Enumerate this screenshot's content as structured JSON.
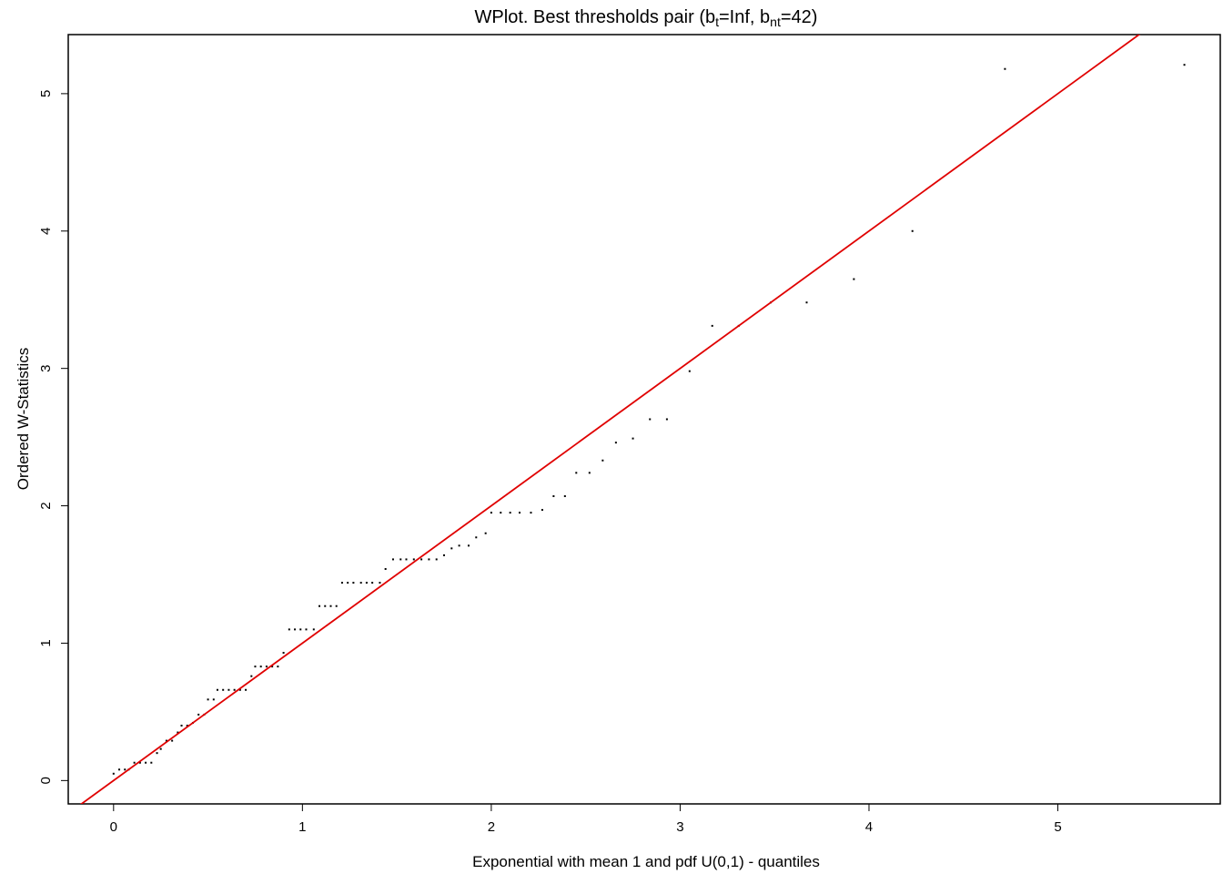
{
  "chart_data": {
    "type": "scatter",
    "title": {
      "prefix": "WPlot. Best thresholds pair (b",
      "sub1": "t",
      "mid": "=Inf, b",
      "sub2": "nt",
      "suffix": "=42)"
    },
    "xlabel": "Exponential with mean 1 and pdf U(0,1) - quantiles",
    "ylabel": "Ordered W-Statistics",
    "xlim": [
      -0.24,
      5.86
    ],
    "ylim": [
      -0.17,
      5.43
    ],
    "xticks": [
      0,
      1,
      2,
      3,
      4,
      5
    ],
    "yticks": [
      0,
      1,
      2,
      3,
      4,
      5
    ],
    "grid": false,
    "reference_line": {
      "intercept": 0,
      "slope": 1,
      "color": "#e00000"
    },
    "point_color": "#000000",
    "points": [
      [
        0.0,
        0.05
      ],
      [
        0.03,
        0.08
      ],
      [
        0.06,
        0.08
      ],
      [
        0.08,
        0.08
      ],
      [
        0.11,
        0.13
      ],
      [
        0.14,
        0.13
      ],
      [
        0.17,
        0.13
      ],
      [
        0.2,
        0.13
      ],
      [
        0.23,
        0.2
      ],
      [
        0.25,
        0.23
      ],
      [
        0.28,
        0.29
      ],
      [
        0.31,
        0.29
      ],
      [
        0.34,
        0.35
      ],
      [
        0.36,
        0.4
      ],
      [
        0.39,
        0.4
      ],
      [
        0.42,
        0.42
      ],
      [
        0.45,
        0.48
      ],
      [
        0.48,
        0.48
      ],
      [
        0.5,
        0.59
      ],
      [
        0.53,
        0.59
      ],
      [
        0.55,
        0.66
      ],
      [
        0.58,
        0.66
      ],
      [
        0.61,
        0.66
      ],
      [
        0.64,
        0.66
      ],
      [
        0.67,
        0.66
      ],
      [
        0.7,
        0.66
      ],
      [
        0.73,
        0.76
      ],
      [
        0.75,
        0.83
      ],
      [
        0.78,
        0.83
      ],
      [
        0.81,
        0.83
      ],
      [
        0.84,
        0.83
      ],
      [
        0.87,
        0.83
      ],
      [
        0.9,
        0.93
      ],
      [
        0.93,
        1.1
      ],
      [
        0.96,
        1.1
      ],
      [
        0.99,
        1.1
      ],
      [
        1.02,
        1.1
      ],
      [
        1.06,
        1.1
      ],
      [
        1.09,
        1.27
      ],
      [
        1.12,
        1.27
      ],
      [
        1.15,
        1.27
      ],
      [
        1.18,
        1.27
      ],
      [
        1.21,
        1.44
      ],
      [
        1.24,
        1.44
      ],
      [
        1.27,
        1.44
      ],
      [
        1.31,
        1.44
      ],
      [
        1.34,
        1.44
      ],
      [
        1.37,
        1.44
      ],
      [
        1.41,
        1.44
      ],
      [
        1.44,
        1.54
      ],
      [
        1.48,
        1.61
      ],
      [
        1.52,
        1.61
      ],
      [
        1.55,
        1.61
      ],
      [
        1.59,
        1.61
      ],
      [
        1.63,
        1.61
      ],
      [
        1.67,
        1.61
      ],
      [
        1.71,
        1.61
      ],
      [
        1.75,
        1.64
      ],
      [
        1.79,
        1.69
      ],
      [
        1.83,
        1.71
      ],
      [
        1.88,
        1.71
      ],
      [
        1.92,
        1.77
      ],
      [
        1.97,
        1.8
      ],
      [
        2.0,
        1.95
      ],
      [
        2.05,
        1.95
      ],
      [
        2.1,
        1.95
      ],
      [
        2.15,
        1.95
      ],
      [
        2.21,
        1.95
      ],
      [
        2.27,
        1.97
      ],
      [
        2.33,
        2.07
      ],
      [
        2.39,
        2.07
      ],
      [
        2.45,
        2.24
      ],
      [
        2.52,
        2.24
      ],
      [
        2.59,
        2.33
      ],
      [
        2.66,
        2.46
      ],
      [
        2.75,
        2.49
      ],
      [
        2.84,
        2.63
      ],
      [
        2.93,
        2.63
      ],
      [
        3.05,
        2.98
      ],
      [
        3.17,
        3.31
      ],
      [
        3.31,
        3.31
      ],
      [
        3.48,
        3.48
      ],
      [
        3.67,
        3.48
      ],
      [
        3.92,
        3.65
      ],
      [
        4.23,
        4.0
      ],
      [
        4.72,
        5.18
      ],
      [
        5.67,
        5.21
      ]
    ]
  }
}
